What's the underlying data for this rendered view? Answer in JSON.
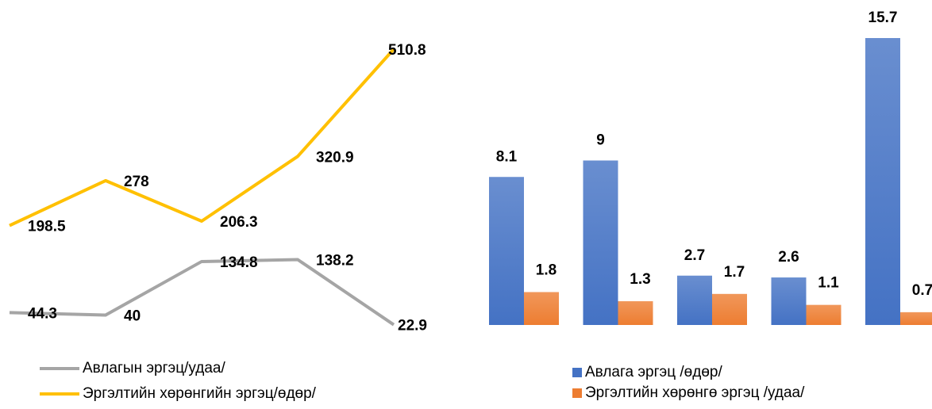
{
  "chart_data": [
    {
      "type": "line",
      "categories": [
        null,
        null,
        null,
        null,
        null
      ],
      "series": [
        {
          "name": "Авлагын эргэц/удаа/",
          "color": "#a5a5a5",
          "values": [
            44.3,
            40,
            134.8,
            138.2,
            22.9
          ]
        },
        {
          "name": "Эргэлтийн хөрөнгийн эргэц/өдөр/",
          "color": "#ffc000",
          "values": [
            198.5,
            278,
            206.3,
            320.9,
            510.8
          ]
        }
      ]
    },
    {
      "type": "bar",
      "categories": [
        null,
        null,
        null,
        null,
        null
      ],
      "series": [
        {
          "name": "Авлага эргэц /өдөр/",
          "color": "#4472c4",
          "values": [
            8.1,
            9,
            2.7,
            2.6,
            15.7
          ]
        },
        {
          "name": "Эргэлтийн хөрөнгө эргэц /удаа/",
          "color": "#ed7d31",
          "values": [
            1.8,
            1.3,
            1.7,
            1.1,
            0.7
          ]
        }
      ]
    }
  ]
}
